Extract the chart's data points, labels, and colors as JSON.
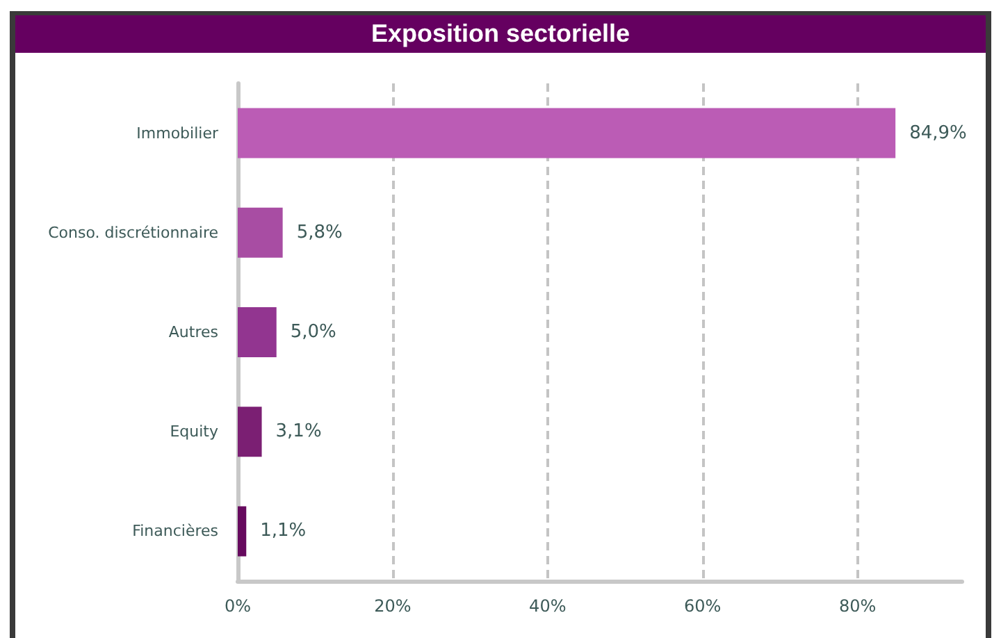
{
  "chart_data": {
    "type": "bar",
    "orientation": "horizontal",
    "title": "Exposition sectorielle",
    "categories": [
      "Immobilier",
      "Conso. discrétionnaire",
      "Autres",
      "Equity",
      "Financières"
    ],
    "values": [
      84.9,
      5.8,
      5.0,
      3.1,
      1.1
    ],
    "colors": [
      "#bb5cb5",
      "#a84da3",
      "#923590",
      "#7b1f73",
      "#660a5e"
    ],
    "value_labels": [
      "84,9%",
      "5,8%",
      "5,0%",
      "3,1%",
      "1,1%"
    ],
    "xlim": [
      0,
      93.5
    ],
    "xticks": [
      {
        "value": 0,
        "label": "0%"
      },
      {
        "value": 20,
        "label": "20%"
      },
      {
        "value": 40,
        "label": "40%"
      },
      {
        "value": 60,
        "label": "60%"
      },
      {
        "value": 80,
        "label": "80%"
      }
    ],
    "grid": "x"
  }
}
